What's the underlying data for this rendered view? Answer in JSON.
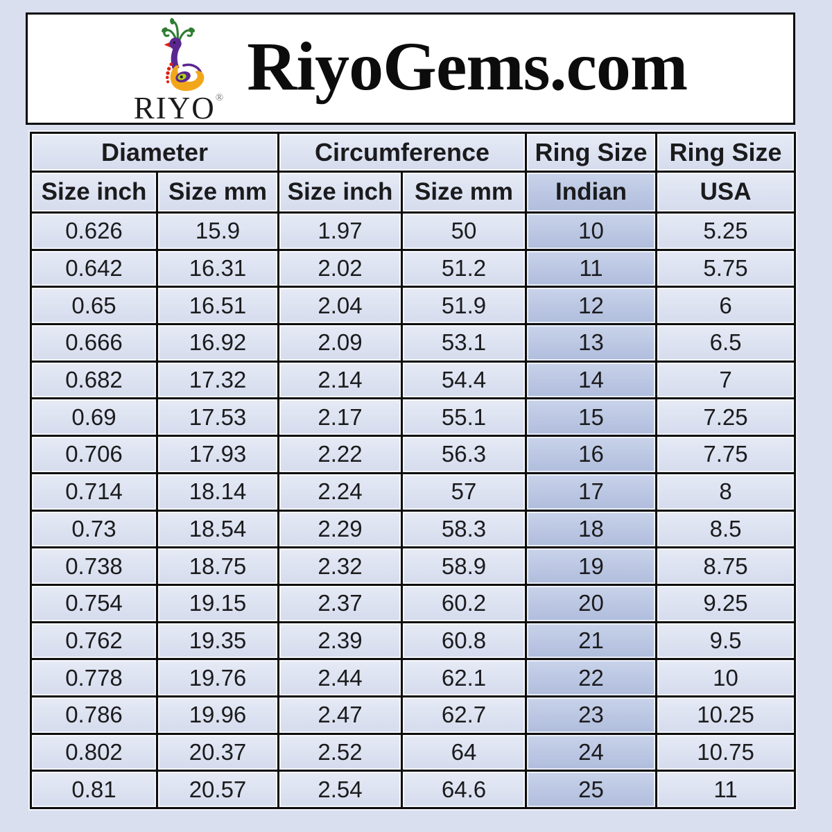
{
  "colors": {
    "page_background": "#d9dfef",
    "header_background": "#ffffff",
    "cell_background": "#dce2f2",
    "highlight_column_background": "#b9c6e4",
    "grid_border": "#0d0d0d",
    "text": "#1b1b1d",
    "logo_purple": "#5a2790",
    "logo_orange": "#f2a71b",
    "logo_green": "#2f7d32",
    "logo_red": "#e02010"
  },
  "header": {
    "brand": "RiyoGems.com",
    "logo_text": "RIYO",
    "registered_mark": "®"
  },
  "chart_data": {
    "type": "table",
    "title": "RiyoGems.com",
    "column_groups": [
      {
        "label": "Diameter",
        "span": 2
      },
      {
        "label": "Circumference",
        "span": 2
      },
      {
        "label": "Ring Size",
        "span": 1
      },
      {
        "label": "Ring Size",
        "span": 1
      }
    ],
    "columns": [
      "Size inch",
      "Size mm",
      "Size inch",
      "Size mm",
      "Indian",
      "USA"
    ],
    "highlight_column": "Indian",
    "highlight_column_index": 4,
    "rows": [
      [
        "0.626",
        "15.9",
        "1.97",
        "50",
        "10",
        "5.25"
      ],
      [
        "0.642",
        "16.31",
        "2.02",
        "51.2",
        "11",
        "5.75"
      ],
      [
        "0.65",
        "16.51",
        "2.04",
        "51.9",
        "12",
        "6"
      ],
      [
        "0.666",
        "16.92",
        "2.09",
        "53.1",
        "13",
        "6.5"
      ],
      [
        "0.682",
        "17.32",
        "2.14",
        "54.4",
        "14",
        "7"
      ],
      [
        "0.69",
        "17.53",
        "2.17",
        "55.1",
        "15",
        "7.25"
      ],
      [
        "0.706",
        "17.93",
        "2.22",
        "56.3",
        "16",
        "7.75"
      ],
      [
        "0.714",
        "18.14",
        "2.24",
        "57",
        "17",
        "8"
      ],
      [
        "0.73",
        "18.54",
        "2.29",
        "58.3",
        "18",
        "8.5"
      ],
      [
        "0.738",
        "18.75",
        "2.32",
        "58.9",
        "19",
        "8.75"
      ],
      [
        "0.754",
        "19.15",
        "2.37",
        "60.2",
        "20",
        "9.25"
      ],
      [
        "0.762",
        "19.35",
        "2.39",
        "60.8",
        "21",
        "9.5"
      ],
      [
        "0.778",
        "19.76",
        "2.44",
        "62.1",
        "22",
        "10"
      ],
      [
        "0.786",
        "19.96",
        "2.47",
        "62.7",
        "23",
        "10.25"
      ],
      [
        "0.802",
        "20.37",
        "2.52",
        "64",
        "24",
        "10.75"
      ],
      [
        "0.81",
        "20.57",
        "2.54",
        "64.6",
        "25",
        "11"
      ]
    ]
  }
}
